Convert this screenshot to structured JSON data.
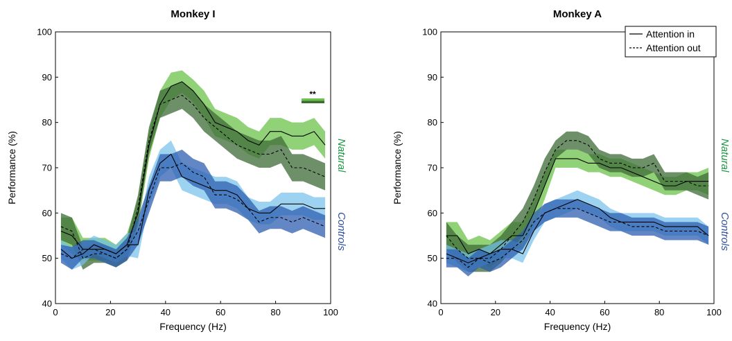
{
  "chart_data": [
    {
      "type": "line",
      "title": "Monkey I",
      "xlabel": "Frequency (Hz)",
      "ylabel": "Performance (%)",
      "xlim": [
        0,
        100
      ],
      "ylim": [
        40,
        100
      ],
      "xticks": [
        "0",
        "20",
        "40",
        "60",
        "80",
        "100"
      ],
      "yticks": [
        "40",
        "50",
        "60",
        "70",
        "80",
        "90",
        "100"
      ],
      "side_labels": [
        {
          "text": "Natural",
          "color": "#1a9641"
        },
        {
          "text": "Controls",
          "color": "#2c4fa0"
        }
      ],
      "significance": "**",
      "x": [
        2,
        6,
        10,
        14,
        18,
        22,
        26,
        30,
        34,
        38,
        42,
        46,
        50,
        54,
        58,
        62,
        66,
        70,
        74,
        78,
        82,
        86,
        90,
        94,
        98
      ],
      "series": [
        {
          "name": "Natural",
          "condition": "Attention in",
          "values": [
            56,
            55,
            52,
            52,
            52,
            51,
            53,
            60,
            75,
            84,
            88,
            89,
            87,
            84,
            80,
            79,
            78,
            76,
            75,
            78,
            78,
            77,
            77,
            78,
            75
          ],
          "band": [
            3,
            4,
            2.5,
            2.5,
            2.5,
            2,
            2.5,
            3,
            3,
            3,
            3,
            2.5,
            2.5,
            3,
            3,
            3,
            3,
            3,
            3,
            3,
            3,
            3,
            3,
            3,
            3
          ]
        },
        {
          "name": "Natural",
          "condition": "Attention out",
          "values": [
            57,
            56,
            50,
            51,
            51,
            50,
            52,
            61,
            76,
            84,
            85,
            86,
            84,
            81,
            79,
            77,
            75,
            74,
            73,
            73,
            74,
            70,
            70,
            69,
            68
          ],
          "band": [
            3,
            3,
            2.5,
            2,
            2,
            2,
            2.5,
            3,
            3,
            3,
            3,
            3,
            3,
            3,
            3,
            3,
            3,
            3,
            3,
            3,
            3,
            3,
            3,
            3,
            3
          ]
        },
        {
          "name": "Controls",
          "condition": "Attention in",
          "values": [
            52,
            50,
            51,
            53,
            52,
            51,
            53,
            53,
            65,
            71,
            73,
            68,
            67,
            66,
            65,
            65,
            64,
            61,
            60,
            60,
            62,
            62,
            62,
            61,
            61
          ],
          "band": [
            2,
            2.5,
            2.5,
            2,
            2,
            2,
            2.5,
            3,
            3,
            3,
            3,
            3,
            3,
            3,
            3,
            3,
            3,
            2.5,
            2.5,
            2.5,
            2.5,
            2.5,
            2.5,
            2.5,
            2.5
          ]
        },
        {
          "name": "Controls",
          "condition": "Attention out",
          "values": [
            51,
            50,
            52,
            52,
            51,
            50,
            52,
            56,
            63,
            70,
            70,
            71,
            69,
            68,
            64,
            64,
            63,
            61,
            58,
            59,
            59,
            58,
            59,
            58,
            57
          ],
          "band": [
            2,
            2.5,
            2,
            2,
            2,
            2,
            2.5,
            3,
            3,
            3,
            3,
            3,
            3,
            3,
            3,
            3,
            3,
            2.5,
            2.5,
            2.5,
            2.5,
            2.5,
            2.5,
            2.5,
            2.5
          ]
        }
      ]
    },
    {
      "type": "line",
      "title": "Monkey A",
      "xlabel": "Frequency (Hz)",
      "ylabel": "Performance (%)",
      "xlim": [
        0,
        100
      ],
      "ylim": [
        40,
        100
      ],
      "xticks": [
        "0",
        "20",
        "40",
        "60",
        "80",
        "100"
      ],
      "yticks": [
        "40",
        "50",
        "60",
        "70",
        "80",
        "90",
        "100"
      ],
      "side_labels": [
        {
          "text": "Natural",
          "color": "#1a9641"
        },
        {
          "text": "Controls",
          "color": "#2c4fa0"
        }
      ],
      "legend": {
        "position": "top-right",
        "entries": [
          {
            "label": "Attention in",
            "style": "solid"
          },
          {
            "label": "Attention out",
            "style": "dashed"
          }
        ]
      },
      "x": [
        2,
        6,
        10,
        14,
        18,
        22,
        26,
        30,
        34,
        38,
        42,
        46,
        50,
        54,
        58,
        62,
        66,
        70,
        74,
        78,
        82,
        86,
        90,
        94,
        98
      ],
      "series": [
        {
          "name": "Natural",
          "condition": "Attention in",
          "values": [
            55,
            55,
            51,
            52,
            51,
            53,
            55,
            55,
            60,
            66,
            72,
            72,
            72,
            71,
            71,
            70,
            70,
            69,
            68,
            67,
            66,
            66,
            67,
            67,
            67
          ],
          "band": [
            3,
            3,
            3,
            3,
            3,
            3,
            3,
            3,
            3,
            3,
            2,
            2,
            2,
            2,
            2,
            2,
            2,
            2,
            2,
            2,
            2,
            2,
            2,
            2,
            3
          ]
        },
        {
          "name": "Natural",
          "condition": "Attention out",
          "values": [
            55,
            52,
            50,
            50,
            50,
            52,
            55,
            58,
            63,
            69,
            74,
            76,
            76,
            75,
            72,
            71,
            71,
            70,
            70,
            71,
            67,
            67,
            67,
            66,
            66
          ],
          "band": [
            3,
            3,
            3,
            3,
            3,
            3,
            3,
            3,
            3,
            3,
            2,
            2,
            2,
            2,
            2,
            2,
            2,
            2,
            2,
            2,
            2,
            2,
            2,
            2,
            3
          ]
        },
        {
          "name": "Controls",
          "condition": "Attention in",
          "values": [
            51,
            50,
            49,
            50,
            51,
            52,
            52,
            51,
            56,
            60,
            61,
            62,
            63,
            62,
            61,
            59,
            58,
            58,
            58,
            58,
            57,
            57,
            57,
            57,
            55
          ],
          "band": [
            2,
            2,
            2,
            2,
            2,
            2,
            2,
            2,
            2,
            2,
            2,
            2,
            2,
            2,
            2,
            2,
            2,
            2,
            2,
            2,
            2,
            2,
            2,
            2,
            2
          ]
        },
        {
          "name": "Controls",
          "condition": "Attention out",
          "values": [
            50,
            50,
            48,
            50,
            49,
            50,
            52,
            54,
            58,
            60,
            61,
            61,
            61,
            60,
            59,
            58,
            58,
            57,
            57,
            57,
            56,
            56,
            56,
            56,
            55
          ],
          "band": [
            2,
            2,
            2,
            2,
            2,
            2,
            2,
            2,
            2,
            2,
            2,
            2,
            2,
            2,
            2,
            2,
            2,
            2,
            2,
            2,
            2,
            2,
            2,
            2,
            2
          ]
        }
      ]
    }
  ]
}
